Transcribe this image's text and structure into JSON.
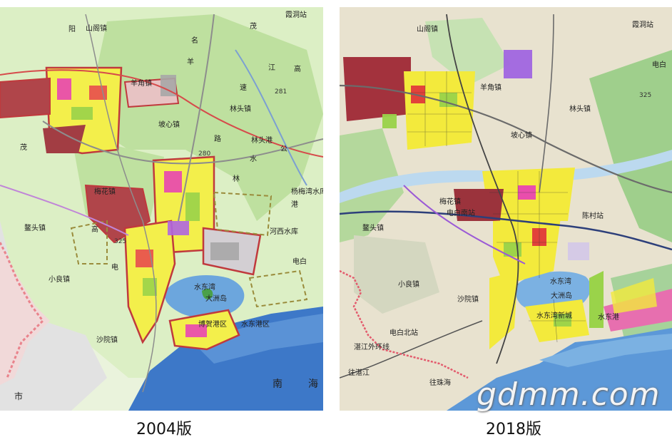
{
  "captions": {
    "left": "2004版",
    "right": "2018版"
  },
  "watermark": "gdmm.com",
  "map2004": {
    "labels": [
      "山阁镇",
      "霞洞站",
      "羊角镇",
      "林头镇",
      "坡心镇",
      "林头港",
      "杨梅湾水库",
      "梅花镇",
      "鳌头镇",
      "河西水库",
      "水东湾",
      "大洲岛",
      "博贺港区",
      "沙院镇",
      "小良镇",
      "水东港区",
      "电白",
      "市",
      "南",
      "海",
      "茂",
      "名",
      "高",
      "路",
      "江",
      "公",
      "速",
      "林",
      "水",
      "港",
      "茂",
      "阳",
      "羊",
      "高",
      "电"
    ],
    "roads": [
      "281",
      "280",
      "325"
    ],
    "colors": {
      "sea": "#3d78c8",
      "bay": "#6ca6dd",
      "green": "#b7dc95",
      "urban_red": "#b0454a",
      "residential": "#f3ef4b"
    }
  },
  "map2018": {
    "labels": [
      "山阁镇",
      "霞洞站",
      "羊角镇",
      "林头镇",
      "坡心镇",
      "梅花镇",
      "电白南站",
      "鳌头镇",
      "陈村站",
      "小良镇",
      "沙院镇",
      "水东湾",
      "大洲岛",
      "水东港",
      "电白北站",
      "往湛江",
      "湛江外环线",
      "往珠海",
      "电白",
      "325",
      "水东湾新城"
    ],
    "colors": {
      "sea": "#5c98d8",
      "bay": "#7bb1e2",
      "terrain": "#e8e2cf",
      "green": "#9fcf8c",
      "river": "#bcd9ef"
    }
  }
}
